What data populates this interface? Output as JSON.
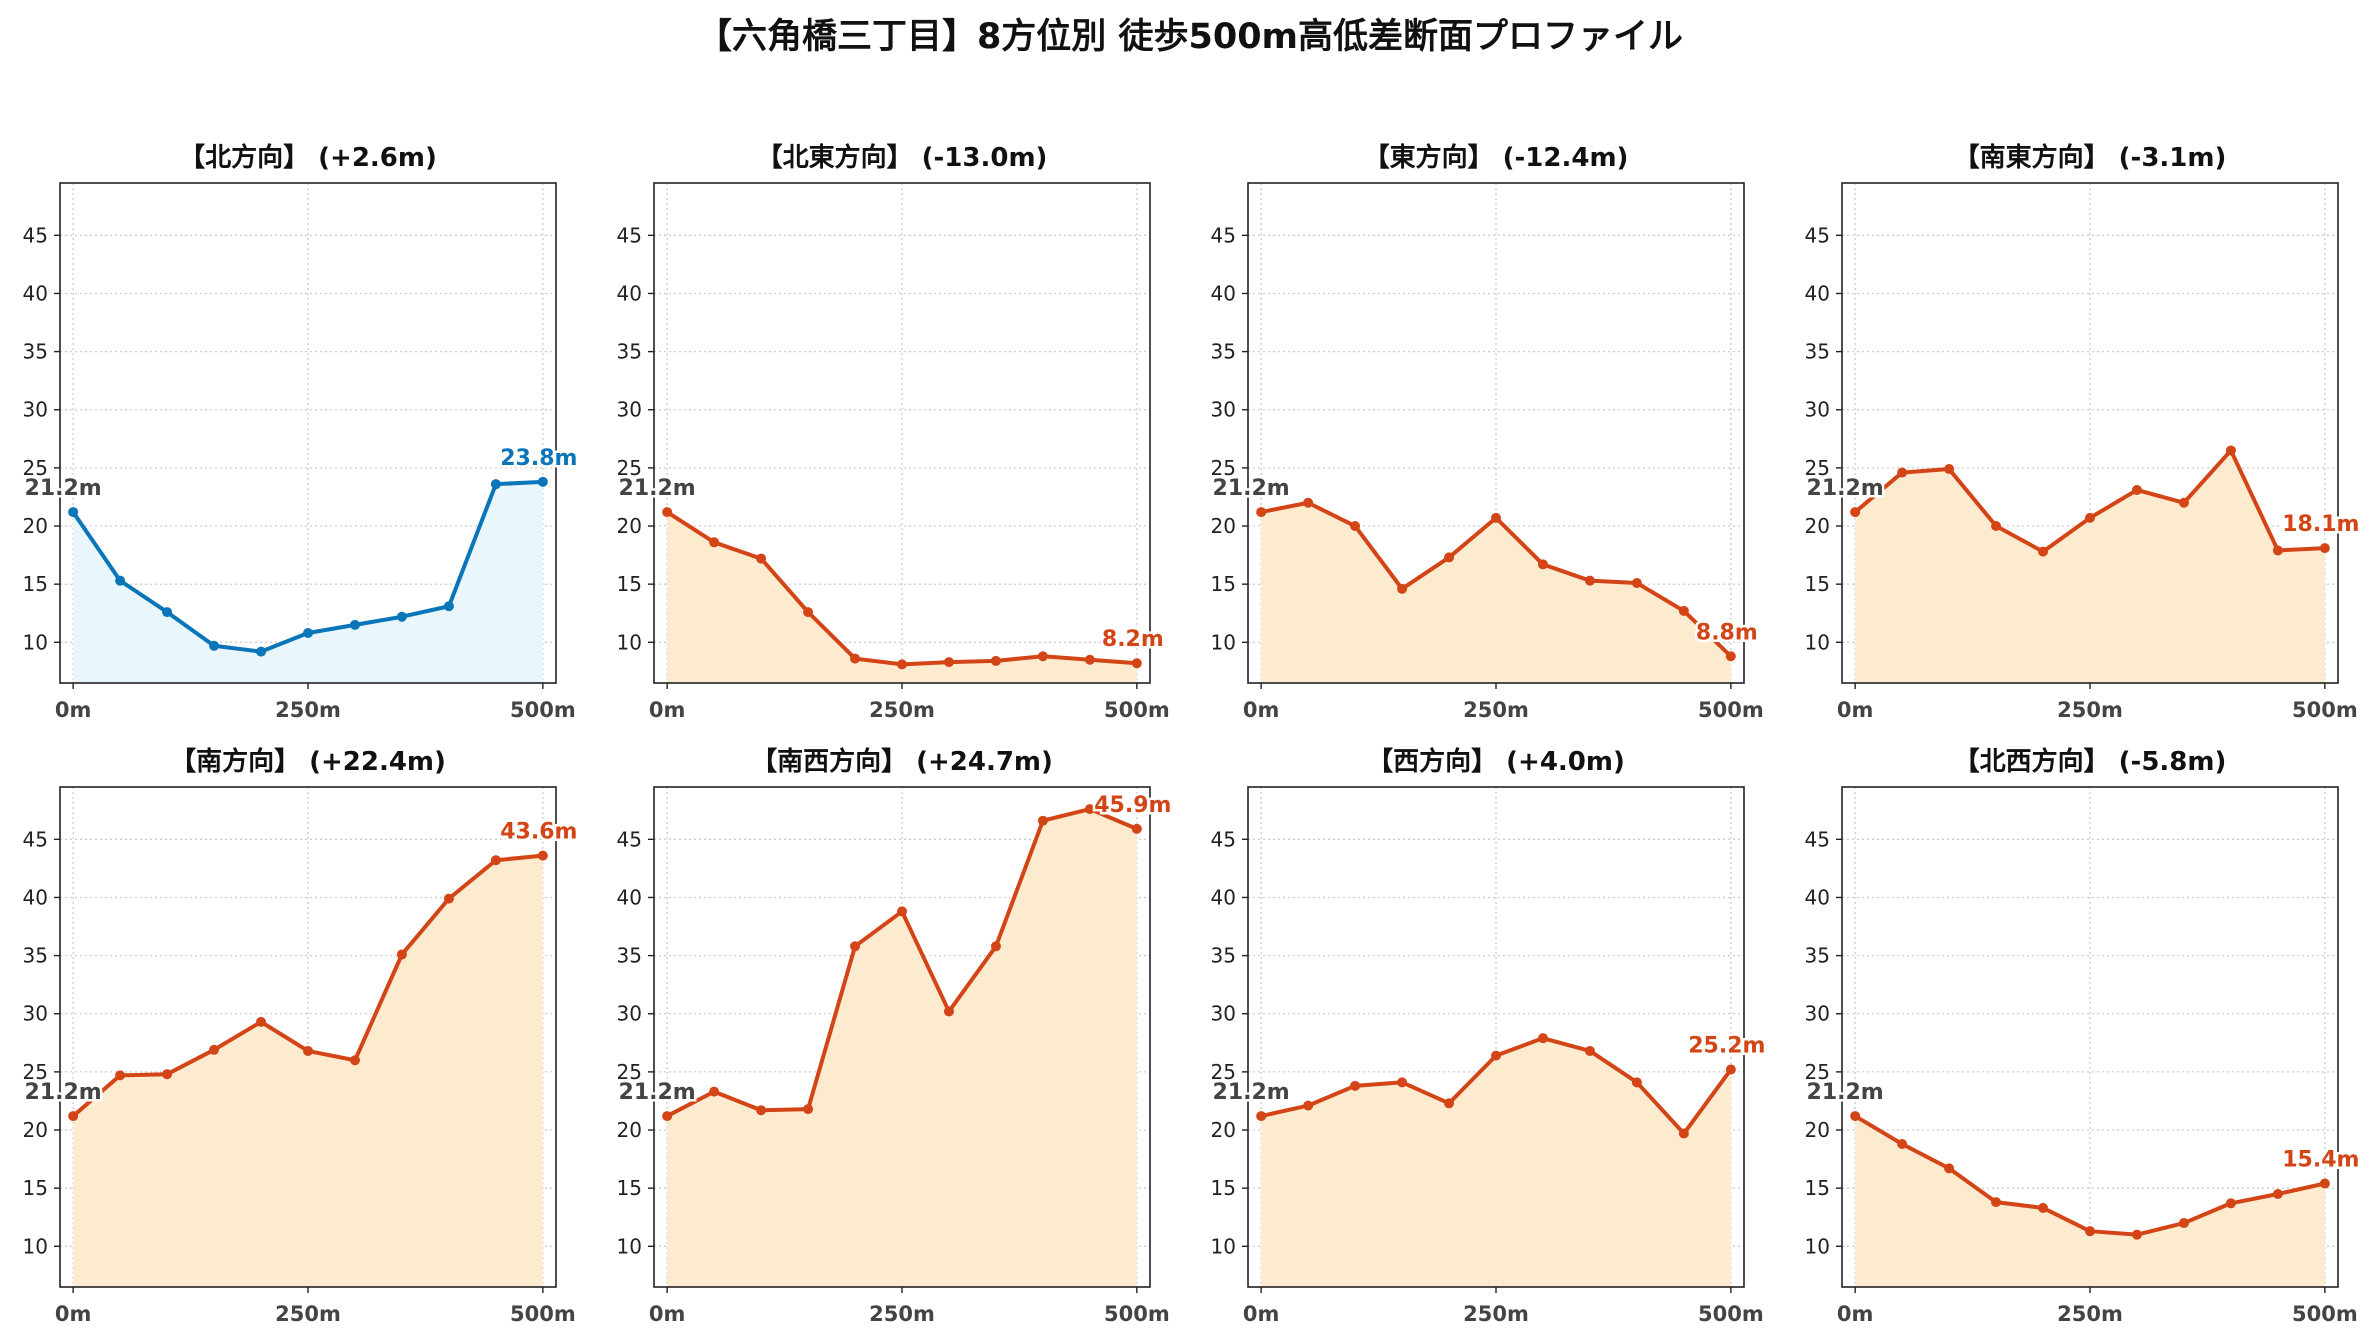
{
  "title": "【六角橋三丁目】8方位別 徒歩500m高低差断面プロファイル",
  "colors": {
    "up_north": "#0a75b8",
    "down": "#d34516",
    "fill_north": "#e9f6fc",
    "fill_down": "#fdebd0"
  },
  "chart_data": [
    {
      "type": "area",
      "title": "【北方向】 (+2.6m)",
      "color": "up_north",
      "x": [
        0,
        50,
        100,
        150,
        200,
        250,
        300,
        350,
        400,
        450,
        500
      ],
      "y": [
        21.2,
        15.3,
        12.6,
        9.7,
        9.2,
        10.8,
        11.5,
        12.2,
        13.1,
        23.6,
        23.8
      ],
      "start_label": "21.2m",
      "end_label": "23.8m",
      "xticks": [
        "0m",
        "250m",
        "500m"
      ],
      "yticks": [
        10,
        15,
        20,
        25,
        30,
        35,
        40,
        45
      ],
      "ylim": [
        6.5,
        49.5
      ],
      "xlim": [
        -14,
        514
      ],
      "grid": true
    },
    {
      "type": "area",
      "title": "【北東方向】 (-13.0m)",
      "color": "down",
      "x": [
        0,
        50,
        100,
        150,
        200,
        250,
        300,
        350,
        400,
        450,
        500
      ],
      "y": [
        21.2,
        18.6,
        17.2,
        12.6,
        8.6,
        8.1,
        8.3,
        8.4,
        8.8,
        8.5,
        8.2
      ],
      "start_label": "21.2m",
      "end_label": "8.2m",
      "xticks": [
        "0m",
        "250m",
        "500m"
      ],
      "yticks": [
        10,
        15,
        20,
        25,
        30,
        35,
        40,
        45
      ],
      "ylim": [
        6.5,
        49.5
      ],
      "xlim": [
        -14,
        514
      ],
      "grid": true
    },
    {
      "type": "area",
      "title": "【東方向】 (-12.4m)",
      "color": "down",
      "x": [
        0,
        50,
        100,
        150,
        200,
        250,
        300,
        350,
        400,
        450,
        500
      ],
      "y": [
        21.2,
        22.0,
        20.0,
        14.6,
        17.3,
        20.7,
        16.7,
        15.3,
        15.1,
        12.7,
        8.8
      ],
      "start_label": "21.2m",
      "end_label": "8.8m",
      "xticks": [
        "0m",
        "250m",
        "500m"
      ],
      "yticks": [
        10,
        15,
        20,
        25,
        30,
        35,
        40,
        45
      ],
      "ylim": [
        6.5,
        49.5
      ],
      "xlim": [
        -14,
        514
      ],
      "grid": true
    },
    {
      "type": "area",
      "title": "【南東方向】 (-3.1m)",
      "color": "down",
      "x": [
        0,
        50,
        100,
        150,
        200,
        250,
        300,
        350,
        400,
        450,
        500
      ],
      "y": [
        21.2,
        24.6,
        24.9,
        20.0,
        17.8,
        20.7,
        23.1,
        22.0,
        26.5,
        17.9,
        18.1
      ],
      "start_label": "21.2m",
      "end_label": "18.1m",
      "xticks": [
        "0m",
        "250m",
        "500m"
      ],
      "yticks": [
        10,
        15,
        20,
        25,
        30,
        35,
        40,
        45
      ],
      "ylim": [
        6.5,
        49.5
      ],
      "xlim": [
        -14,
        514
      ],
      "grid": true
    },
    {
      "type": "area",
      "title": "【南方向】 (+22.4m)",
      "color": "down",
      "x": [
        0,
        50,
        100,
        150,
        200,
        250,
        300,
        350,
        400,
        450,
        500
      ],
      "y": [
        21.2,
        24.7,
        24.8,
        26.9,
        29.3,
        26.8,
        26.0,
        35.1,
        39.9,
        43.2,
        43.6
      ],
      "start_label": "21.2m",
      "end_label": "43.6m",
      "xticks": [
        "0m",
        "250m",
        "500m"
      ],
      "yticks": [
        10,
        15,
        20,
        25,
        30,
        35,
        40,
        45
      ],
      "ylim": [
        6.5,
        49.5
      ],
      "xlim": [
        -14,
        514
      ],
      "grid": true
    },
    {
      "type": "area",
      "title": "【南西方向】 (+24.7m)",
      "color": "down",
      "x": [
        0,
        50,
        100,
        150,
        200,
        250,
        300,
        350,
        400,
        450,
        500
      ],
      "y": [
        21.2,
        23.3,
        21.7,
        21.8,
        35.8,
        38.8,
        30.2,
        35.8,
        46.6,
        47.6,
        45.9
      ],
      "start_label": "21.2m",
      "end_label": "45.9m",
      "xticks": [
        "0m",
        "250m",
        "500m"
      ],
      "yticks": [
        10,
        15,
        20,
        25,
        30,
        35,
        40,
        45
      ],
      "ylim": [
        6.5,
        49.5
      ],
      "xlim": [
        -14,
        514
      ],
      "grid": true
    },
    {
      "type": "area",
      "title": "【西方向】 (+4.0m)",
      "color": "down",
      "x": [
        0,
        50,
        100,
        150,
        200,
        250,
        300,
        350,
        400,
        450,
        500
      ],
      "y": [
        21.2,
        22.1,
        23.8,
        24.1,
        22.3,
        26.4,
        27.9,
        26.8,
        24.1,
        19.7,
        25.2
      ],
      "start_label": "21.2m",
      "end_label": "25.2m",
      "xticks": [
        "0m",
        "250m",
        "500m"
      ],
      "yticks": [
        10,
        15,
        20,
        25,
        30,
        35,
        40,
        45
      ],
      "ylim": [
        6.5,
        49.5
      ],
      "xlim": [
        -14,
        514
      ],
      "grid": true
    },
    {
      "type": "area",
      "title": "【北西方向】 (-5.8m)",
      "color": "down",
      "x": [
        0,
        50,
        100,
        150,
        200,
        250,
        300,
        350,
        400,
        450,
        500
      ],
      "y": [
        21.2,
        18.8,
        16.7,
        13.8,
        13.3,
        11.3,
        11.0,
        12.0,
        13.7,
        14.5,
        15.4
      ],
      "start_label": "21.2m",
      "end_label": "15.4m",
      "xticks": [
        "0m",
        "250m",
        "500m"
      ],
      "yticks": [
        10,
        15,
        20,
        25,
        30,
        35,
        40,
        45
      ],
      "ylim": [
        6.5,
        49.5
      ],
      "xlim": [
        -14,
        514
      ],
      "grid": true
    }
  ]
}
